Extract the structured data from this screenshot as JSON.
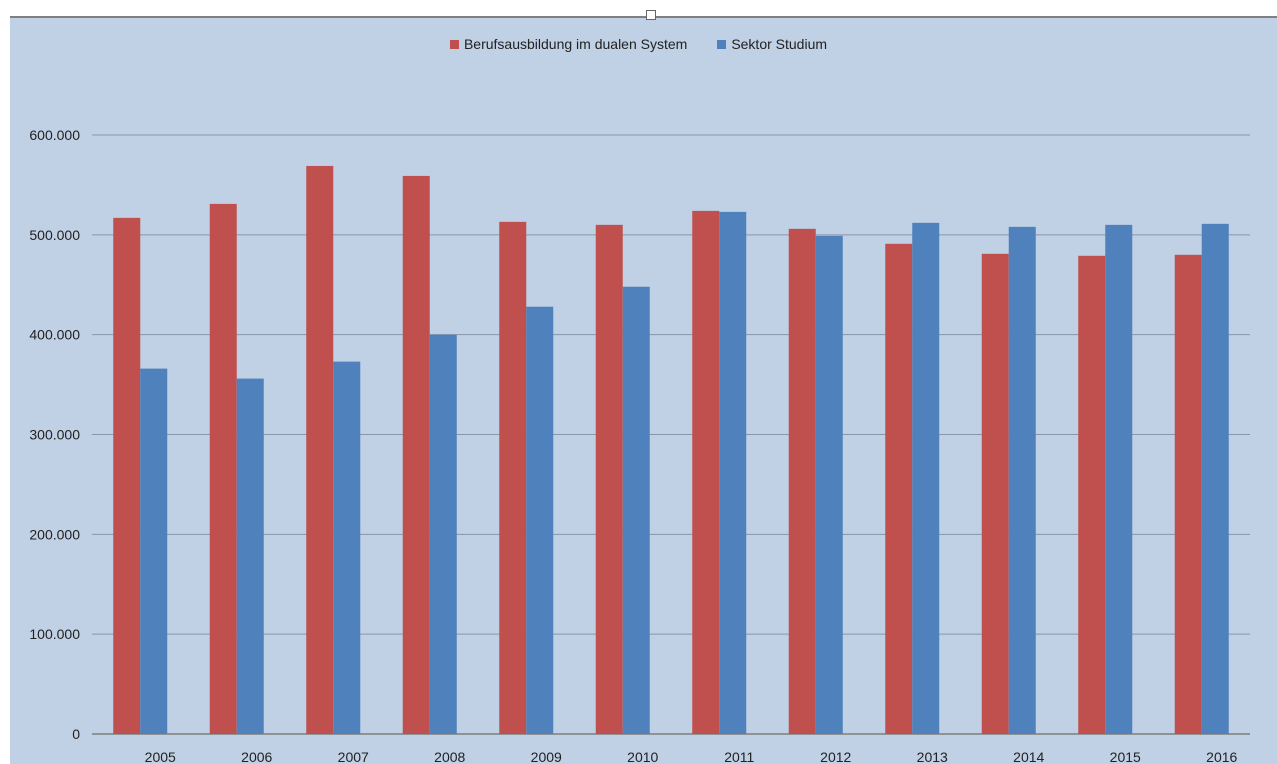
{
  "chart_data": {
    "type": "bar",
    "categories": [
      "2005",
      "2006",
      "2007",
      "2008",
      "2009",
      "2010",
      "2011",
      "2012",
      "2013",
      "2014",
      "2015",
      "2016"
    ],
    "series": [
      {
        "name": "Berufsausbildung im dualen System",
        "color": "#c0504d",
        "values": [
          517000,
          531000,
          569000,
          559000,
          513000,
          510000,
          524000,
          506000,
          491000,
          481000,
          479000,
          480000
        ]
      },
      {
        "name": "Sektor Studium",
        "color": "#4f81bd",
        "values": [
          366000,
          356000,
          373000,
          400000,
          428000,
          448000,
          523000,
          499000,
          512000,
          508000,
          510000,
          511000
        ]
      }
    ],
    "y_ticks": [
      "0",
      "100.000",
      "200.000",
      "300.000",
      "400.000",
      "500.000",
      "600.000"
    ],
    "ylim": [
      0,
      600000
    ],
    "grid": true,
    "legend_position": "top-center",
    "title": "",
    "xlabel": "",
    "ylabel": ""
  }
}
